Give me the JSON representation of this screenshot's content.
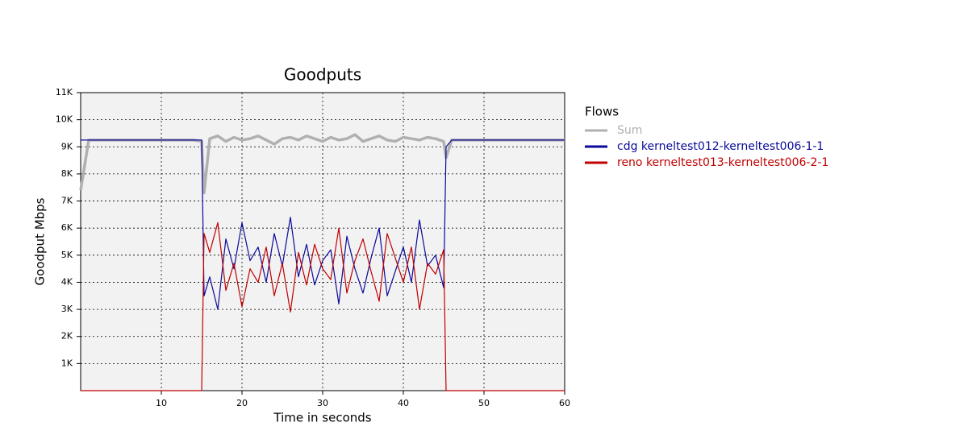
{
  "chart_data": {
    "type": "line",
    "title": "Goodputs",
    "xlabel": "Time in seconds",
    "ylabel": "Goodput Mbps",
    "legend_title": "Flows",
    "legend": "right",
    "grid": true,
    "xlim": [
      0,
      60
    ],
    "ylim": [
      0,
      11000
    ],
    "xticks": [
      10,
      20,
      30,
      40,
      50,
      60
    ],
    "yticks": [
      {
        "value": 1000,
        "label": "1K"
      },
      {
        "value": 2000,
        "label": "2K"
      },
      {
        "value": 3000,
        "label": "3K"
      },
      {
        "value": 4000,
        "label": "4K"
      },
      {
        "value": 5000,
        "label": "5K"
      },
      {
        "value": 6000,
        "label": "6K"
      },
      {
        "value": 7000,
        "label": "7K"
      },
      {
        "value": 8000,
        "label": "8K"
      },
      {
        "value": 9000,
        "label": "9K"
      },
      {
        "value": 10000,
        "label": "10K"
      },
      {
        "value": 11000,
        "label": "11K"
      }
    ],
    "x": [
      0,
      1,
      2,
      3,
      4,
      5,
      6,
      7,
      8,
      9,
      10,
      11,
      12,
      13,
      14,
      15,
      15.3,
      16,
      17,
      18,
      19,
      20,
      21,
      22,
      23,
      24,
      25,
      26,
      27,
      28,
      29,
      30,
      31,
      32,
      33,
      34,
      35,
      36,
      37,
      38,
      39,
      40,
      41,
      42,
      43,
      44,
      45,
      45.3,
      46,
      47,
      48,
      49,
      50,
      51,
      52,
      53,
      54,
      55,
      56,
      57,
      58,
      59,
      60
    ],
    "series": [
      {
        "name": "Sum",
        "color": "#b0b0b0",
        "width": 3.5,
        "values": [
          7400,
          9250,
          9250,
          9250,
          9250,
          9250,
          9250,
          9250,
          9250,
          9250,
          9250,
          9250,
          9250,
          9250,
          9250,
          9200,
          7300,
          9300,
          9400,
          9200,
          9350,
          9250,
          9300,
          9400,
          9250,
          9100,
          9300,
          9350,
          9250,
          9400,
          9300,
          9200,
          9350,
          9250,
          9300,
          9450,
          9200,
          9300,
          9400,
          9250,
          9200,
          9350,
          9300,
          9250,
          9350,
          9300,
          9200,
          8600,
          9250,
          9250,
          9250,
          9250,
          9250,
          9250,
          9250,
          9250,
          9250,
          9250,
          9250,
          9250,
          9250,
          9250,
          9250
        ]
      },
      {
        "name": "cdg kerneltest012-kerneltest006-1-1",
        "color": "#0a0a9a",
        "width": 1.2,
        "values": [
          9250,
          9250,
          9250,
          9250,
          9250,
          9250,
          9250,
          9250,
          9250,
          9250,
          9250,
          9250,
          9250,
          9250,
          9250,
          9250,
          3500,
          4200,
          3000,
          5600,
          4500,
          6200,
          4800,
          5300,
          4000,
          5800,
          4600,
          6400,
          4200,
          5400,
          3900,
          4800,
          5200,
          3200,
          5700,
          4500,
          3600,
          4900,
          6000,
          3500,
          4400,
          5300,
          4000,
          6300,
          4600,
          5000,
          3800,
          9000,
          9250,
          9250,
          9250,
          9250,
          9250,
          9250,
          9250,
          9250,
          9250,
          9250,
          9250,
          9250,
          9250,
          9250,
          9250
        ]
      },
      {
        "name": "reno kerneltest013-kerneltest006-2-1",
        "color": "#c00000",
        "width": 1.2,
        "values": [
          0,
          0,
          0,
          0,
          0,
          0,
          0,
          0,
          0,
          0,
          0,
          0,
          0,
          0,
          0,
          0,
          5800,
          5100,
          6200,
          3700,
          4700,
          3100,
          4500,
          4000,
          5300,
          3500,
          4700,
          2900,
          5100,
          3900,
          5400,
          4500,
          4100,
          6000,
          3600,
          4800,
          5600,
          4400,
          3300,
          5800,
          4900,
          4000,
          5300,
          3000,
          4700,
          4300,
          5200,
          0,
          0,
          0,
          0,
          0,
          0,
          0,
          0,
          0,
          0,
          0,
          0,
          0,
          0,
          0,
          0
        ]
      }
    ]
  }
}
